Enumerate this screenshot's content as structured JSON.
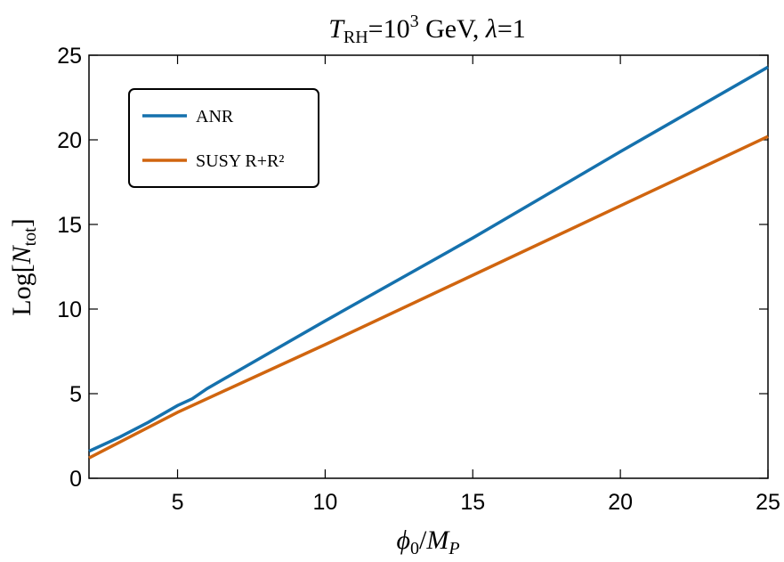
{
  "chart_data": {
    "type": "line",
    "title": [
      "T",
      "RH",
      "=10",
      "3",
      " GeV, ",
      "λ",
      "=1"
    ],
    "xlabel": [
      "ϕ",
      "0",
      "/",
      "M",
      "P"
    ],
    "ylabel": [
      "Log[",
      "N",
      "tot",
      "]"
    ],
    "series": [
      {
        "name": "ANR",
        "color": "#1571ad",
        "x": [
          2,
          3,
          4,
          5,
          5.5,
          6,
          10,
          15,
          20,
          25
        ],
        "values": [
          1.6,
          2.4,
          3.3,
          4.3,
          4.7,
          5.3,
          9.3,
          14.2,
          19.3,
          24.3
        ]
      },
      {
        "name": "SUSY R+R²",
        "color": "#d0650f",
        "x": [
          2,
          5,
          10,
          15,
          20,
          25
        ],
        "values": [
          1.2,
          3.9,
          7.9,
          12.0,
          16.1,
          20.2
        ]
      }
    ],
    "xlim": [
      2,
      25
    ],
    "ylim": [
      0,
      25
    ],
    "xticks": [
      5,
      10,
      15,
      20,
      25
    ],
    "yticks": [
      0,
      5,
      10,
      15,
      20,
      25
    ],
    "legend": "upper left"
  }
}
